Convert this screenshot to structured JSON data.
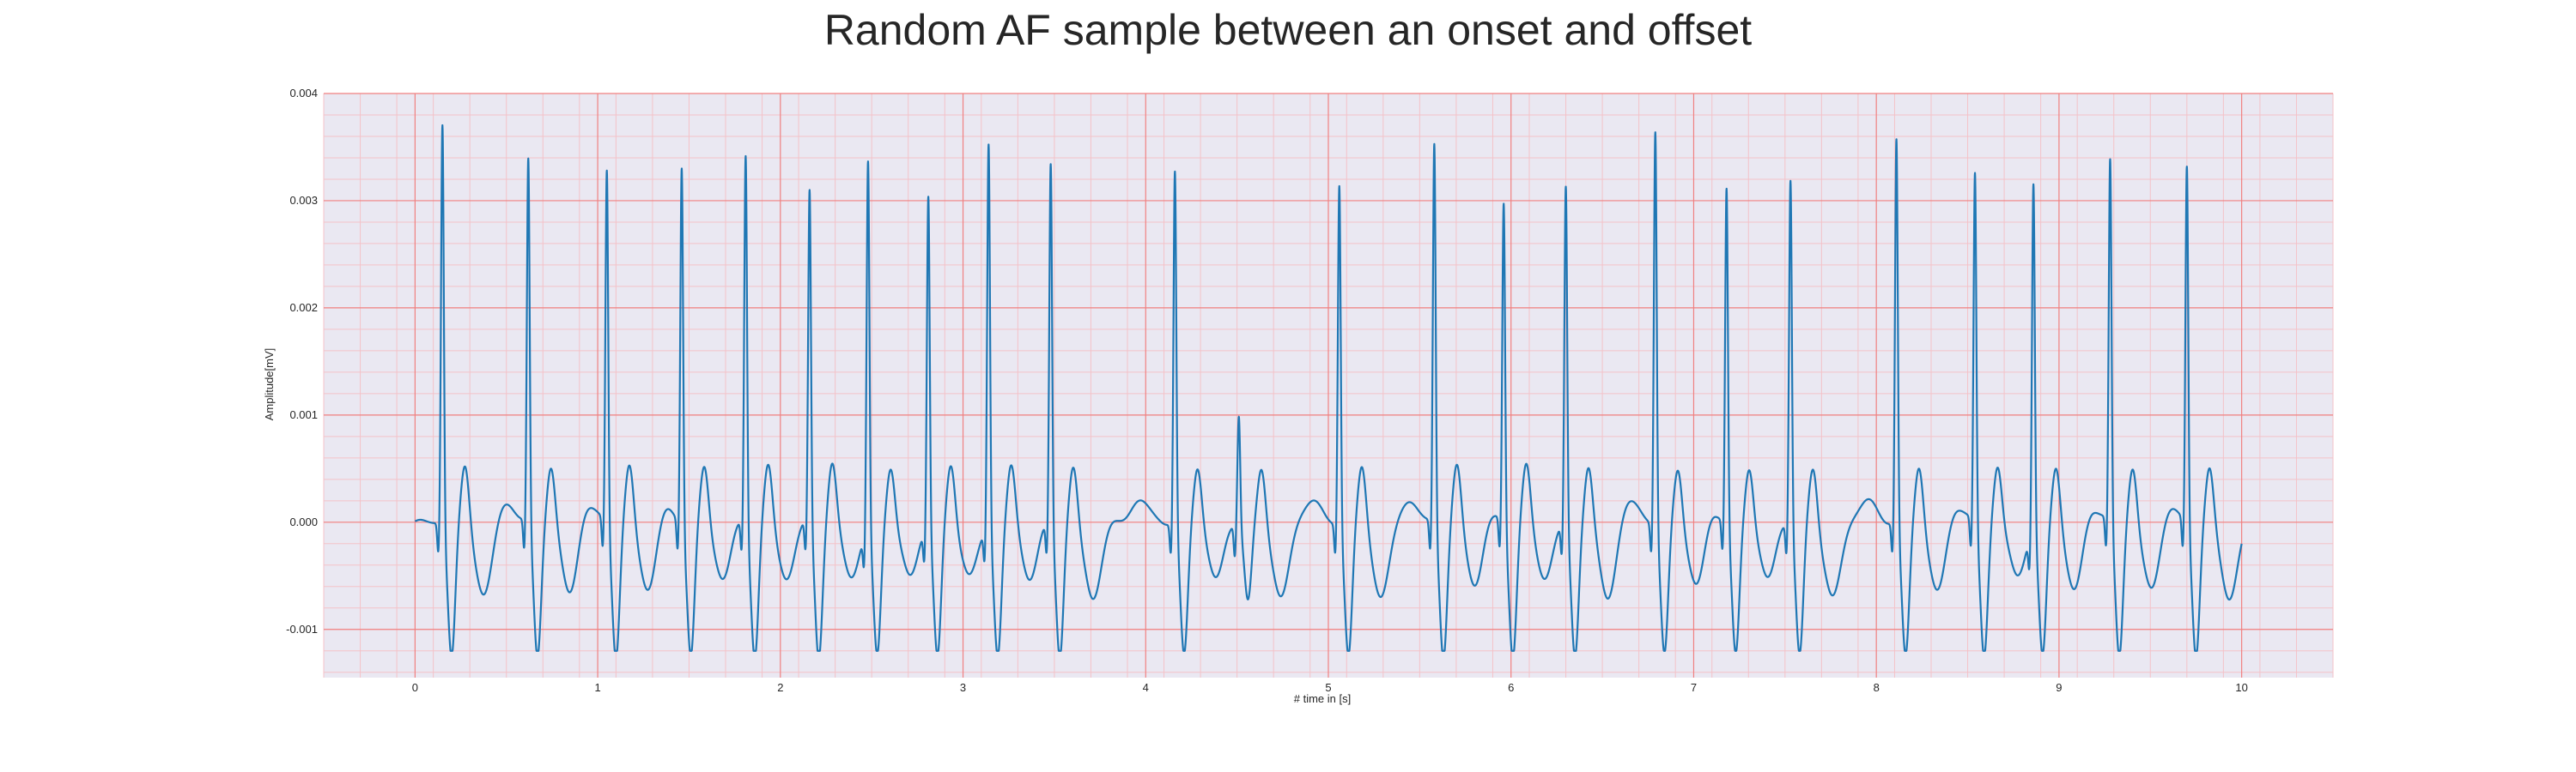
{
  "chart_data": {
    "type": "line",
    "title": "Random AF sample between an onset and offset",
    "xlabel": "# time in [s]",
    "ylabel": "Amplitude[mV]",
    "xlim": [
      -0.5,
      10.5
    ],
    "ylim": [
      -0.00145,
      0.004
    ],
    "xticks": [
      "0",
      "1",
      "2",
      "3",
      "4",
      "5",
      "6",
      "7",
      "8",
      "9",
      "10"
    ],
    "yticks": [
      "-0.001",
      "0.000",
      "0.001",
      "0.002",
      "0.003",
      "0.004"
    ],
    "grid": true,
    "legend": "none",
    "colors": {
      "line": "#1f77b4",
      "background": "#eae8f2",
      "major_grid": "#f08080",
      "minor_grid": "#f4c2c8"
    },
    "series": [
      {
        "beats": [
          {
            "t": 0.15,
            "peak": 0.00377
          },
          {
            "t": 0.62,
            "peak": 0.00342
          },
          {
            "t": 1.05,
            "peak": 0.00333
          },
          {
            "t": 1.46,
            "peak": 0.00337
          },
          {
            "t": 1.81,
            "peak": 0.00347
          },
          {
            "t": 2.16,
            "peak": 0.00313
          },
          {
            "t": 2.48,
            "peak": 0.00347
          },
          {
            "t": 2.81,
            "peak": 0.00312
          },
          {
            "t": 3.14,
            "peak": 0.00362
          },
          {
            "t": 3.48,
            "peak": 0.0034
          },
          {
            "t": 4.16,
            "peak": 0.00332
          },
          {
            "t": 4.51,
            "peak": 0.00103
          },
          {
            "t": 5.06,
            "peak": 0.0032
          },
          {
            "t": 5.58,
            "peak": 0.00358
          },
          {
            "t": 5.96,
            "peak": 0.00301
          },
          {
            "t": 6.3,
            "peak": 0.00318
          },
          {
            "t": 6.79,
            "peak": 0.0037
          },
          {
            "t": 7.18,
            "peak": 0.00315
          },
          {
            "t": 7.53,
            "peak": 0.00325
          },
          {
            "t": 8.11,
            "peak": 0.00362
          },
          {
            "t": 8.54,
            "peak": 0.00329
          },
          {
            "t": 8.86,
            "peak": 0.00326
          },
          {
            "t": 9.28,
            "peak": 0.00341
          },
          {
            "t": 9.7,
            "peak": 0.00336
          }
        ],
        "t_start": 0,
        "t_end": 10,
        "baseline_range": [
          -0.0012,
          0.00037
        ]
      }
    ]
  }
}
